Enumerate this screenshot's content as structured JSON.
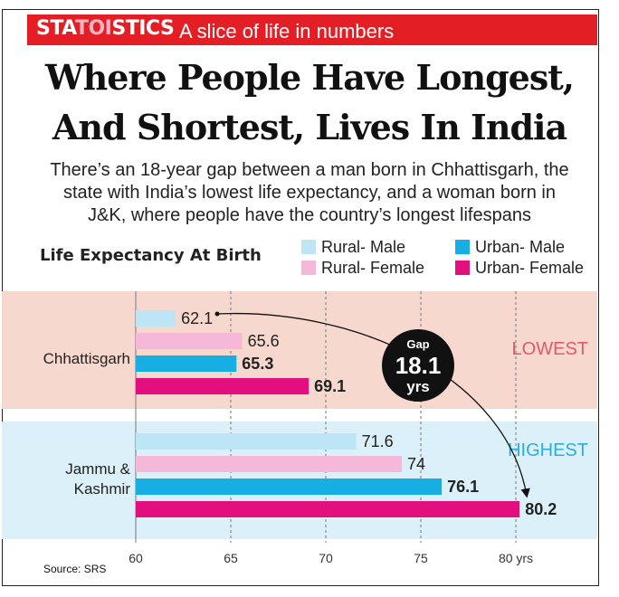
{
  "header": {
    "brand_part1": "STA",
    "brand_part2": "TOI",
    "brand_part3": "STICS",
    "tagline": "A slice of life in numbers"
  },
  "headline": {
    "line1": "Where People Have Longest,",
    "line2": "And Shortest, Lives In India"
  },
  "subtitle": {
    "line1": "There’s an 18-year gap between a man born in Chhattisgarh, the",
    "line2": "state with India’s lowest life expectancy, and a woman born in",
    "line3": "J&K, where people have the country’s longest lifespans"
  },
  "gap_badge": {
    "top": "Gap",
    "value": "18.1",
    "unit": "yrs"
  },
  "source": "Source: SRS",
  "colors": {
    "banner": "#e31e25",
    "rural_male": "#bde5f5",
    "rural_female": "#f6b8d8",
    "urban_male": "#16aee3",
    "urban_female": "#e40f7f",
    "band_lowest": "#f7d8cf",
    "band_highest": "#dcf0fa",
    "lowest_text": "#e0596a",
    "highest_text": "#2aaee0"
  },
  "chart_data": {
    "type": "bar",
    "orientation": "horizontal",
    "title": "Life Expectancy At Birth",
    "categories": [
      "Chhattisgarh",
      "Jammu & Kashmir"
    ],
    "category_display": [
      [
        "Chhattisgarh"
      ],
      [
        "Jammu &",
        "Kashmir"
      ]
    ],
    "band_labels": [
      "LOWEST",
      "HIGHEST"
    ],
    "series": [
      {
        "name": "Rural- Male",
        "values": [
          62.1,
          71.6
        ],
        "labels": [
          "62.1",
          "71.6"
        ]
      },
      {
        "name": "Rural- Female",
        "values": [
          65.6,
          74
        ],
        "labels": [
          "65.6",
          "74"
        ]
      },
      {
        "name": "Urban- Male",
        "values": [
          65.3,
          76.1
        ],
        "labels": [
          "65.3",
          "76.1"
        ]
      },
      {
        "name": "Urban- Female",
        "values": [
          69.1,
          80.2
        ],
        "labels": [
          "69.1",
          "80.2"
        ]
      }
    ],
    "xlim": [
      60,
      81
    ],
    "xticks": [
      60,
      65,
      70,
      75,
      80
    ],
    "xtick_labels": [
      "60",
      "65",
      "70",
      "75",
      "80 yrs"
    ],
    "grid": true,
    "legend_position": "top-right"
  }
}
